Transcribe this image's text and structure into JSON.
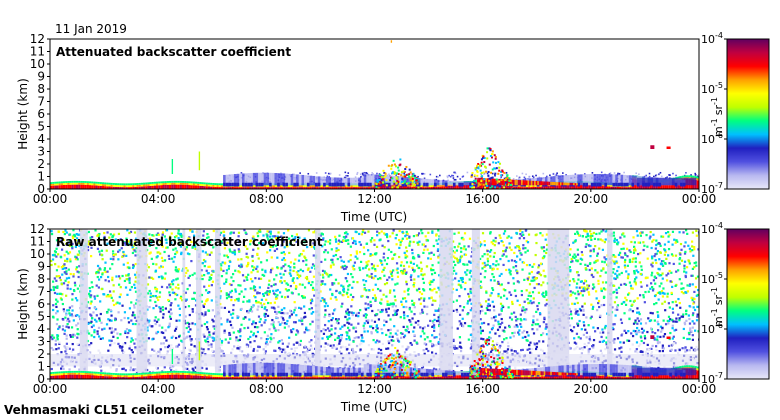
{
  "date_label": "11 Jan 2019",
  "footer_label": "Vehmasmaki CL51 ceilometer",
  "chart_data": [
    {
      "type": "heatmap",
      "title": "Attenuated backscatter coefficient",
      "xlabel": "Time (UTC)",
      "ylabel": "Height (km)",
      "xlim": [
        "00:00",
        "24:00"
      ],
      "x_ticks": [
        "00:00",
        "04:00",
        "08:00",
        "12:00",
        "16:00",
        "20:00",
        "00:00"
      ],
      "ylim": [
        0,
        12
      ],
      "y_ticks": [
        0,
        1,
        2,
        3,
        4,
        5,
        6,
        7,
        8,
        9,
        10,
        11,
        12
      ],
      "colorbar": {
        "scale": "log",
        "range": [
          1e-07,
          0.0001
        ],
        "ticks": [
          {
            "base": "10",
            "exp": "-7"
          },
          {
            "base": "10",
            "exp": "-6"
          },
          {
            "base": "10",
            "exp": "-5"
          },
          {
            "base": "10",
            "exp": "-4"
          }
        ],
        "unit": {
          "a": "m",
          "a_exp": "-1",
          "b": "sr",
          "b_exp": "-1"
        },
        "colors": [
          "#e8e8f8",
          "#b8b8f0",
          "#5050e0",
          "#2020c0",
          "#00c0ff",
          "#00ff80",
          "#c0ff00",
          "#ffff00",
          "#ffa000",
          "#ff0000",
          "#c00040",
          "#600060"
        ]
      }
    },
    {
      "type": "heatmap",
      "title": "Raw attenuated backscatter coefficient",
      "xlabel": "Time (UTC)",
      "ylabel": "Height (km)",
      "xlim": [
        "00:00",
        "24:00"
      ],
      "x_ticks": [
        "00:00",
        "04:00",
        "08:00",
        "12:00",
        "16:00",
        "20:00",
        "00:00"
      ],
      "ylim": [
        0,
        12
      ],
      "y_ticks": [
        0,
        1,
        2,
        3,
        4,
        5,
        6,
        7,
        8,
        9,
        10,
        11,
        12
      ],
      "colorbar": {
        "scale": "log",
        "range": [
          1e-07,
          0.0001
        ],
        "ticks": [
          {
            "base": "10",
            "exp": "-7"
          },
          {
            "base": "10",
            "exp": "-6"
          },
          {
            "base": "10",
            "exp": "-5"
          },
          {
            "base": "10",
            "exp": "-4"
          }
        ],
        "unit": {
          "a": "m",
          "a_exp": "-1",
          "b": "sr",
          "b_exp": "-1"
        },
        "colors": [
          "#e8e8f8",
          "#b8b8f0",
          "#5050e0",
          "#2020c0",
          "#00c0ff",
          "#00ff80",
          "#c0ff00",
          "#ffff00",
          "#ffa000",
          "#ff0000",
          "#c00040",
          "#600060"
        ]
      }
    }
  ]
}
